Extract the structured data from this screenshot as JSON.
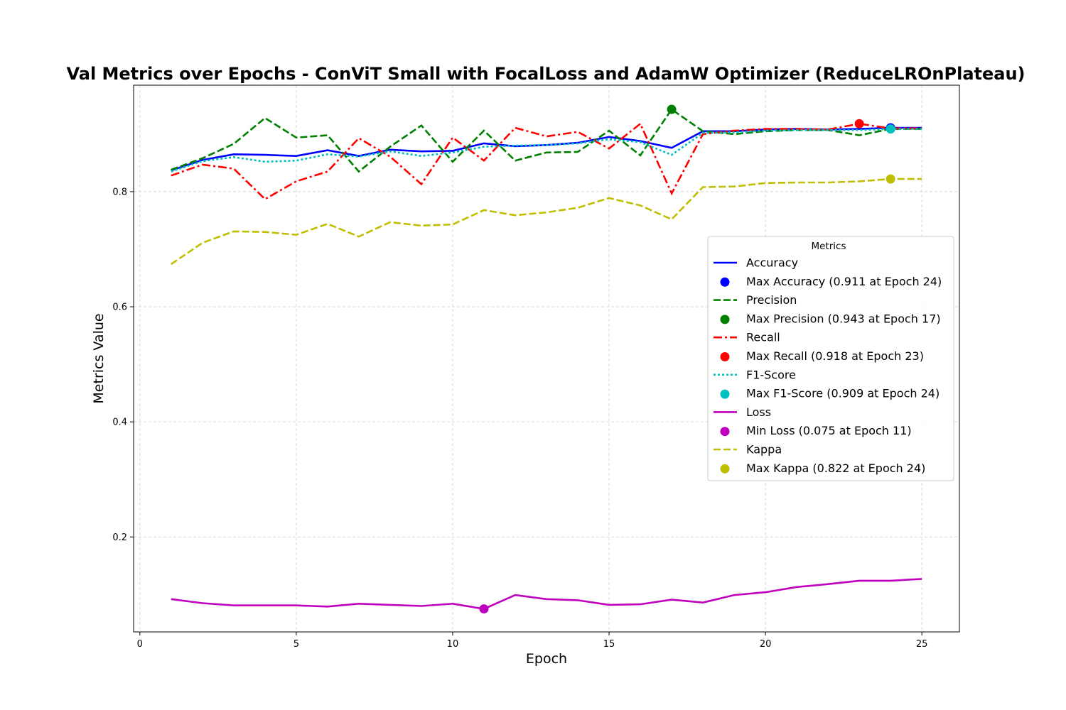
{
  "chart_data": {
    "type": "line",
    "title": "Val Metrics over Epochs - ConViT Small with FocalLoss and AdamW Optimizer (ReduceLROnPlateau)",
    "xlabel": "Epoch",
    "ylabel": "Metrics Value",
    "xlim": [
      -0.2,
      26.2
    ],
    "ylim": [
      0.035,
      0.985
    ],
    "xticks": [
      0,
      5,
      10,
      15,
      20,
      25
    ],
    "yticks": [
      0.2,
      0.4,
      0.6,
      0.8
    ],
    "grid": true,
    "legend_title": "Metrics",
    "legend_position": "center-right",
    "x": [
      1,
      2,
      3,
      4,
      5,
      6,
      7,
      8,
      9,
      10,
      11,
      12,
      13,
      14,
      15,
      16,
      17,
      18,
      19,
      20,
      21,
      22,
      23,
      24,
      25
    ],
    "series": [
      {
        "name": "Accuracy",
        "color": "#0000ff",
        "style": "solid",
        "values": [
          0.837,
          0.855,
          0.865,
          0.864,
          0.862,
          0.872,
          0.862,
          0.873,
          0.87,
          0.871,
          0.884,
          0.879,
          0.881,
          0.885,
          0.895,
          0.888,
          0.876,
          0.905,
          0.905,
          0.908,
          0.909,
          0.908,
          0.909,
          0.911,
          0.911
        ]
      },
      {
        "name": "Precision",
        "color": "#008000",
        "style": "dashed",
        "values": [
          0.838,
          0.858,
          0.883,
          0.928,
          0.894,
          0.898,
          0.835,
          0.878,
          0.915,
          0.852,
          0.906,
          0.854,
          0.868,
          0.869,
          0.906,
          0.863,
          0.943,
          0.905,
          0.9,
          0.905,
          0.907,
          0.907,
          0.898,
          0.909,
          0.909
        ]
      },
      {
        "name": "Recall",
        "color": "#ff0000",
        "style": "dashdot",
        "values": [
          0.828,
          0.847,
          0.84,
          0.787,
          0.818,
          0.835,
          0.893,
          0.861,
          0.813,
          0.894,
          0.854,
          0.911,
          0.896,
          0.904,
          0.875,
          0.918,
          0.797,
          0.9,
          0.906,
          0.909,
          0.909,
          0.908,
          0.918,
          0.91,
          0.91
        ]
      },
      {
        "name": "F1-Score",
        "color": "#00bfbf",
        "style": "dotted",
        "values": [
          0.835,
          0.853,
          0.86,
          0.852,
          0.854,
          0.865,
          0.861,
          0.87,
          0.862,
          0.868,
          0.878,
          0.88,
          0.881,
          0.884,
          0.891,
          0.886,
          0.864,
          0.902,
          0.903,
          0.906,
          0.907,
          0.907,
          0.907,
          0.909,
          0.909
        ]
      },
      {
        "name": "Loss",
        "color": "#bf00bf",
        "style": "solid",
        "values": [
          0.092,
          0.085,
          0.081,
          0.081,
          0.081,
          0.079,
          0.084,
          0.082,
          0.08,
          0.084,
          0.075,
          0.099,
          0.092,
          0.09,
          0.082,
          0.083,
          0.091,
          0.086,
          0.099,
          0.104,
          0.113,
          0.118,
          0.124,
          0.124,
          0.127
        ]
      },
      {
        "name": "Kappa",
        "color": "#bfbf00",
        "style": "dashed",
        "values": [
          0.674,
          0.711,
          0.731,
          0.73,
          0.725,
          0.744,
          0.722,
          0.747,
          0.741,
          0.743,
          0.768,
          0.759,
          0.764,
          0.772,
          0.789,
          0.776,
          0.752,
          0.808,
          0.809,
          0.815,
          0.816,
          0.816,
          0.818,
          0.822,
          0.822
        ]
      }
    ],
    "markers": [
      {
        "name": "Max Accuracy (0.911 at Epoch 24)",
        "x": 24,
        "y": 0.911,
        "color": "#0000ff"
      },
      {
        "name": "Max Precision (0.943 at Epoch 17)",
        "x": 17,
        "y": 0.943,
        "color": "#008000"
      },
      {
        "name": "Max Recall (0.918 at Epoch 23)",
        "x": 23,
        "y": 0.918,
        "color": "#ff0000"
      },
      {
        "name": "Max F1-Score (0.909 at Epoch 24)",
        "x": 24,
        "y": 0.909,
        "color": "#00bfbf"
      },
      {
        "name": "Min Loss (0.075 at Epoch 11)",
        "x": 11,
        "y": 0.075,
        "color": "#bf00bf"
      },
      {
        "name": "Max Kappa (0.822 at Epoch 24)",
        "x": 24,
        "y": 0.822,
        "color": "#bfbf00"
      }
    ],
    "legend_entries": [
      {
        "kind": "line",
        "series": 0
      },
      {
        "kind": "marker",
        "marker": 0
      },
      {
        "kind": "line",
        "series": 1
      },
      {
        "kind": "marker",
        "marker": 1
      },
      {
        "kind": "line",
        "series": 2
      },
      {
        "kind": "marker",
        "marker": 2
      },
      {
        "kind": "line",
        "series": 3
      },
      {
        "kind": "marker",
        "marker": 3
      },
      {
        "kind": "line",
        "series": 4
      },
      {
        "kind": "marker",
        "marker": 4
      },
      {
        "kind": "line",
        "series": 5
      },
      {
        "kind": "marker",
        "marker": 5
      }
    ]
  }
}
